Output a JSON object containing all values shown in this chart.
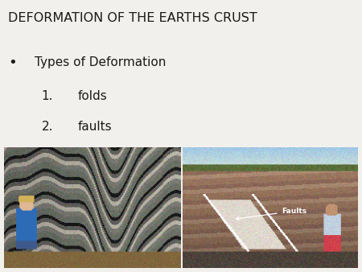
{
  "title": "DEFORMATION OF THE EARTHS CRUST",
  "title_fontsize": 11.5,
  "title_color": "#1a1a1a",
  "title_font": "sans-serif",
  "bullet_text": "Types of Deformation",
  "item1_num": "1.",
  "item1_text": "folds",
  "item2_num": "2.",
  "item2_text": "faults",
  "item_fontsize": 11,
  "item_font": "sans-serif",
  "background_color": "#f2f0ec",
  "faults_label": "Faults",
  "faults_label_fontsize": 6.5,
  "faults_label_color": "#ffffff"
}
